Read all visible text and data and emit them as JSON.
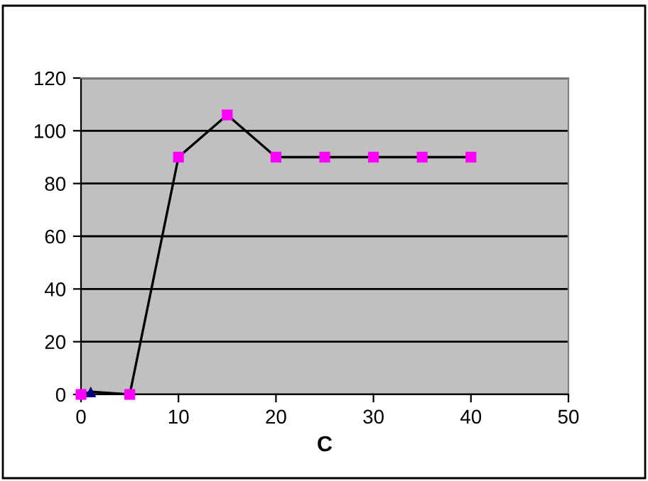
{
  "chart_data": {
    "type": "line",
    "xlabel": "C",
    "series": [
      {
        "color": "#000000",
        "marker": "none",
        "x": [
          0,
          1,
          5,
          10,
          15,
          20,
          25,
          30,
          35,
          40
        ],
        "values": [
          0,
          1,
          0,
          90,
          106,
          90,
          90,
          90,
          90,
          90
        ]
      },
      {
        "type": "scatter",
        "color": "#000080",
        "marker": "triangle",
        "x": [
          1
        ],
        "values": [
          1
        ]
      },
      {
        "type": "scatter",
        "color": "#ff00ff",
        "marker": "square",
        "x": [
          0,
          5,
          10,
          15,
          20,
          25,
          30,
          35,
          40
        ],
        "values": [
          0,
          0,
          90,
          106,
          90,
          90,
          90,
          90,
          90
        ]
      }
    ],
    "xlim": [
      0,
      50
    ],
    "xticks": [
      0,
      10,
      20,
      30,
      40,
      50
    ],
    "ylim": [
      0,
      120
    ],
    "yticks": [
      0,
      20,
      40,
      60,
      80,
      100,
      120
    ],
    "grid": "y",
    "legend": false
  }
}
